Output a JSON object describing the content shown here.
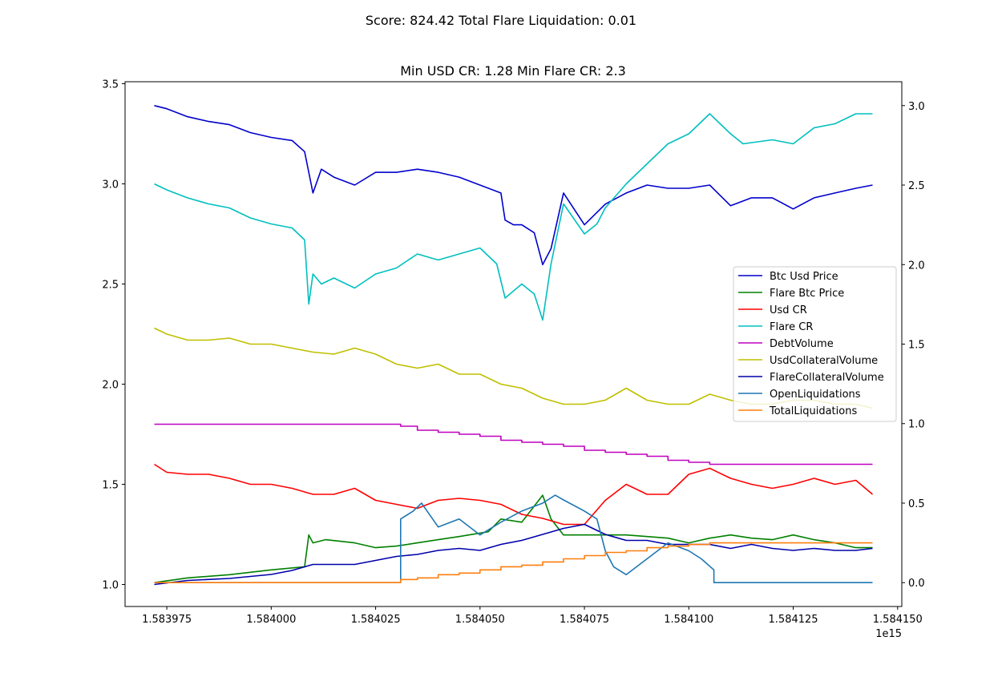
{
  "suptitle": "Score: 824.42 Total Flare Liquidation: 0.01",
  "chart_data": {
    "type": "line",
    "title": "Min USD CR: 1.28 Min Flare CR: 2.3",
    "xlabel": "",
    "ylabel": "",
    "x_offset_label": "1e15",
    "xlim": [
      1.583965,
      1.584151
    ],
    "ylim_left": [
      0.89,
      3.51
    ],
    "ylim_right": [
      -0.15,
      3.15
    ],
    "x_ticks": [
      1.583975,
      1.584,
      1.584025,
      1.58405,
      1.584075,
      1.5841,
      1.584125,
      1.58415
    ],
    "x_tick_labels": [
      "1.583975",
      "1.584000",
      "1.584025",
      "1.584050",
      "1.584075",
      "1.584100",
      "1.584125",
      "1.584150"
    ],
    "y_left_ticks": [
      1.0,
      1.5,
      2.0,
      2.5,
      3.0,
      3.5
    ],
    "y_left_tick_labels": [
      "1.0",
      "1.5",
      "2.0",
      "2.5",
      "3.0",
      "3.5"
    ],
    "y_right_ticks": [
      0.0,
      0.5,
      1.0,
      1.5,
      2.0,
      2.5,
      3.0
    ],
    "y_right_tick_labels": [
      "0.0",
      "0.5",
      "1.0",
      "1.5",
      "2.0",
      "2.5",
      "3.0"
    ],
    "grid": false,
    "legend_position": "center-right",
    "series": [
      {
        "name": "Btc Usd Price",
        "axis": "right",
        "color": "#0000cc",
        "x": [
          1.583972,
          1.583975,
          1.58398,
          1.583985,
          1.58399,
          1.583995,
          1.584,
          1.584005,
          1.584008,
          1.58401,
          1.584012,
          1.584015,
          1.58402,
          1.584025,
          1.58403,
          1.584035,
          1.58404,
          1.584045,
          1.58405,
          1.584055,
          1.584056,
          1.584058,
          1.58406,
          1.584063,
          1.584065,
          1.584067,
          1.58407,
          1.584075,
          1.58408,
          1.584085,
          1.58409,
          1.584095,
          1.5841,
          1.584105,
          1.58411,
          1.584115,
          1.58412,
          1.584125,
          1.58413,
          1.584135,
          1.58414,
          1.584144
        ],
        "y": [
          3.0,
          2.98,
          2.93,
          2.9,
          2.88,
          2.83,
          2.8,
          2.78,
          2.71,
          2.45,
          2.6,
          2.55,
          2.5,
          2.58,
          2.58,
          2.6,
          2.58,
          2.55,
          2.5,
          2.45,
          2.28,
          2.25,
          2.25,
          2.2,
          2.0,
          2.1,
          2.45,
          2.25,
          2.38,
          2.45,
          2.5,
          2.48,
          2.48,
          2.5,
          2.37,
          2.42,
          2.42,
          2.35,
          2.42,
          2.45,
          2.48,
          2.5
        ]
      },
      {
        "name": "Flare Btc Price",
        "axis": "right",
        "color": "#008000",
        "x": [
          1.583972,
          1.58398,
          1.58399,
          1.584,
          1.584008,
          1.584009,
          1.58401,
          1.584013,
          1.58402,
          1.584025,
          1.58403,
          1.584035,
          1.58404,
          1.584045,
          1.584052,
          1.584055,
          1.58406,
          1.584065,
          1.584067,
          1.58407,
          1.584075,
          1.58408,
          1.584085,
          1.584095,
          1.5841,
          1.584105,
          1.58411,
          1.584115,
          1.58412,
          1.584125,
          1.58413,
          1.584135,
          1.58414,
          1.584144
        ],
        "y": [
          0.0,
          0.03,
          0.05,
          0.08,
          0.1,
          0.3,
          0.25,
          0.27,
          0.25,
          0.22,
          0.23,
          0.25,
          0.27,
          0.29,
          0.32,
          0.4,
          0.38,
          0.55,
          0.4,
          0.3,
          0.3,
          0.3,
          0.3,
          0.28,
          0.25,
          0.28,
          0.3,
          0.28,
          0.27,
          0.3,
          0.27,
          0.25,
          0.22,
          0.22
        ]
      },
      {
        "name": "Usd CR",
        "axis": "left",
        "color": "#ff0000",
        "x": [
          1.583972,
          1.583975,
          1.58398,
          1.583985,
          1.58399,
          1.583995,
          1.584,
          1.584005,
          1.58401,
          1.584015,
          1.58402,
          1.584025,
          1.58403,
          1.584035,
          1.58404,
          1.584045,
          1.58405,
          1.584055,
          1.58406,
          1.584065,
          1.58407,
          1.584075,
          1.58408,
          1.584085,
          1.58409,
          1.584095,
          1.5841,
          1.584105,
          1.58411,
          1.584115,
          1.58412,
          1.584125,
          1.58413,
          1.584135,
          1.58414,
          1.584144
        ],
        "y": [
          1.6,
          1.56,
          1.55,
          1.55,
          1.53,
          1.5,
          1.5,
          1.48,
          1.45,
          1.45,
          1.48,
          1.42,
          1.4,
          1.38,
          1.42,
          1.43,
          1.42,
          1.4,
          1.35,
          1.33,
          1.3,
          1.3,
          1.42,
          1.5,
          1.45,
          1.45,
          1.55,
          1.58,
          1.53,
          1.5,
          1.48,
          1.5,
          1.53,
          1.5,
          1.52,
          1.45
        ]
      },
      {
        "name": "Flare CR",
        "axis": "left",
        "color": "#00bfbf",
        "x": [
          1.583972,
          1.583975,
          1.58398,
          1.583985,
          1.58399,
          1.583995,
          1.584,
          1.584005,
          1.584008,
          1.584009,
          1.58401,
          1.584012,
          1.584015,
          1.58402,
          1.584025,
          1.58403,
          1.584035,
          1.58404,
          1.584045,
          1.58405,
          1.584054,
          1.584056,
          1.58406,
          1.584063,
          1.584065,
          1.584067,
          1.58407,
          1.584075,
          1.584078,
          1.58408,
          1.584085,
          1.58409,
          1.584095,
          1.5841,
          1.584105,
          1.58411,
          1.584113,
          1.58412,
          1.584125,
          1.58413,
          1.584135,
          1.58414,
          1.584144
        ],
        "y": [
          3.0,
          2.97,
          2.93,
          2.9,
          2.88,
          2.83,
          2.8,
          2.78,
          2.72,
          2.4,
          2.55,
          2.5,
          2.53,
          2.48,
          2.55,
          2.58,
          2.65,
          2.62,
          2.65,
          2.68,
          2.6,
          2.43,
          2.5,
          2.45,
          2.32,
          2.6,
          2.9,
          2.75,
          2.8,
          2.88,
          3.0,
          3.1,
          3.2,
          3.25,
          3.35,
          3.25,
          3.2,
          3.22,
          3.2,
          3.28,
          3.3,
          3.35,
          3.35
        ]
      },
      {
        "name": "DebtVolume",
        "axis": "left",
        "color": "#bf00bf",
        "x": [
          1.583972,
          1.584031,
          1.584031,
          1.584035,
          1.584035,
          1.58404,
          1.58404,
          1.584045,
          1.584045,
          1.58405,
          1.58405,
          1.584055,
          1.584055,
          1.58406,
          1.58406,
          1.584065,
          1.584065,
          1.58407,
          1.58407,
          1.584075,
          1.584075,
          1.58408,
          1.58408,
          1.584085,
          1.584085,
          1.58409,
          1.58409,
          1.584095,
          1.584095,
          1.5841,
          1.5841,
          1.584105,
          1.584105,
          1.584144
        ],
        "y": [
          1.8,
          1.8,
          1.79,
          1.79,
          1.77,
          1.77,
          1.76,
          1.76,
          1.75,
          1.75,
          1.74,
          1.74,
          1.72,
          1.72,
          1.71,
          1.71,
          1.7,
          1.7,
          1.69,
          1.69,
          1.67,
          1.67,
          1.66,
          1.66,
          1.65,
          1.65,
          1.64,
          1.64,
          1.62,
          1.62,
          1.61,
          1.61,
          1.6,
          1.6
        ]
      },
      {
        "name": "UsdCollateralVolume",
        "axis": "left",
        "color": "#bfbf00",
        "x": [
          1.583972,
          1.583975,
          1.58398,
          1.583985,
          1.58399,
          1.583995,
          1.584,
          1.584005,
          1.58401,
          1.584015,
          1.58402,
          1.584025,
          1.58403,
          1.584035,
          1.58404,
          1.584045,
          1.58405,
          1.584055,
          1.58406,
          1.584065,
          1.58407,
          1.584075,
          1.58408,
          1.584085,
          1.58409,
          1.584095,
          1.5841,
          1.584105,
          1.58411,
          1.584115,
          1.58412,
          1.584125,
          1.58413,
          1.584135,
          1.58414,
          1.584144
        ],
        "y": [
          2.28,
          2.25,
          2.22,
          2.22,
          2.23,
          2.2,
          2.2,
          2.18,
          2.16,
          2.15,
          2.18,
          2.15,
          2.1,
          2.08,
          2.1,
          2.05,
          2.05,
          2.0,
          1.98,
          1.93,
          1.9,
          1.9,
          1.92,
          1.98,
          1.92,
          1.9,
          1.9,
          1.95,
          1.92,
          1.9,
          1.9,
          1.92,
          1.92,
          1.9,
          1.9,
          1.88
        ]
      },
      {
        "name": "FlareCollateralVolume",
        "axis": "left",
        "color": "#0000aa",
        "x": [
          1.583972,
          1.58398,
          1.58399,
          1.584,
          1.584005,
          1.58401,
          1.584015,
          1.58402,
          1.584025,
          1.58403,
          1.584035,
          1.58404,
          1.584045,
          1.58405,
          1.584055,
          1.58406,
          1.584065,
          1.58407,
          1.584075,
          1.58408,
          1.584085,
          1.58409,
          1.584095,
          1.5841,
          1.584105,
          1.58411,
          1.584115,
          1.58412,
          1.584125,
          1.58413,
          1.584135,
          1.58414,
          1.584144
        ],
        "y": [
          1.0,
          1.02,
          1.03,
          1.05,
          1.07,
          1.1,
          1.1,
          1.1,
          1.12,
          1.14,
          1.15,
          1.17,
          1.18,
          1.17,
          1.2,
          1.22,
          1.25,
          1.28,
          1.3,
          1.25,
          1.22,
          1.22,
          1.2,
          1.2,
          1.2,
          1.18,
          1.2,
          1.18,
          1.17,
          1.18,
          1.17,
          1.17,
          1.18
        ]
      },
      {
        "name": "OpenLiquidations",
        "axis": "right",
        "color": "#1f77b4",
        "x": [
          1.583972,
          1.584031,
          1.584031,
          1.584034,
          1.584036,
          1.58404,
          1.584045,
          1.58405,
          1.584055,
          1.58406,
          1.584065,
          1.584068,
          1.58407,
          1.584075,
          1.584078,
          1.58408,
          1.584082,
          1.584085,
          1.58409,
          1.584095,
          1.5841,
          1.584103,
          1.584106,
          1.584106,
          1.584144
        ],
        "y": [
          0.0,
          0.0,
          0.4,
          0.45,
          0.5,
          0.35,
          0.4,
          0.3,
          0.38,
          0.45,
          0.5,
          0.55,
          0.52,
          0.45,
          0.4,
          0.2,
          0.1,
          0.05,
          0.15,
          0.25,
          0.2,
          0.15,
          0.08,
          0.0,
          0.0
        ]
      },
      {
        "name": "TotalLiquidations",
        "axis": "right",
        "color": "#ff7f0e",
        "x": [
          1.583972,
          1.584031,
          1.584031,
          1.584035,
          1.584035,
          1.58404,
          1.58404,
          1.584045,
          1.584045,
          1.58405,
          1.58405,
          1.584055,
          1.584055,
          1.58406,
          1.58406,
          1.584065,
          1.584065,
          1.58407,
          1.58407,
          1.584075,
          1.584075,
          1.58408,
          1.58408,
          1.584085,
          1.584085,
          1.58409,
          1.58409,
          1.584095,
          1.584095,
          1.5841,
          1.5841,
          1.584105,
          1.584105,
          1.584144
        ],
        "y": [
          0.0,
          0.0,
          0.02,
          0.02,
          0.03,
          0.03,
          0.05,
          0.05,
          0.06,
          0.06,
          0.08,
          0.08,
          0.1,
          0.1,
          0.11,
          0.11,
          0.13,
          0.13,
          0.15,
          0.15,
          0.17,
          0.17,
          0.19,
          0.19,
          0.2,
          0.2,
          0.22,
          0.22,
          0.23,
          0.23,
          0.24,
          0.24,
          0.25,
          0.25
        ]
      }
    ]
  }
}
